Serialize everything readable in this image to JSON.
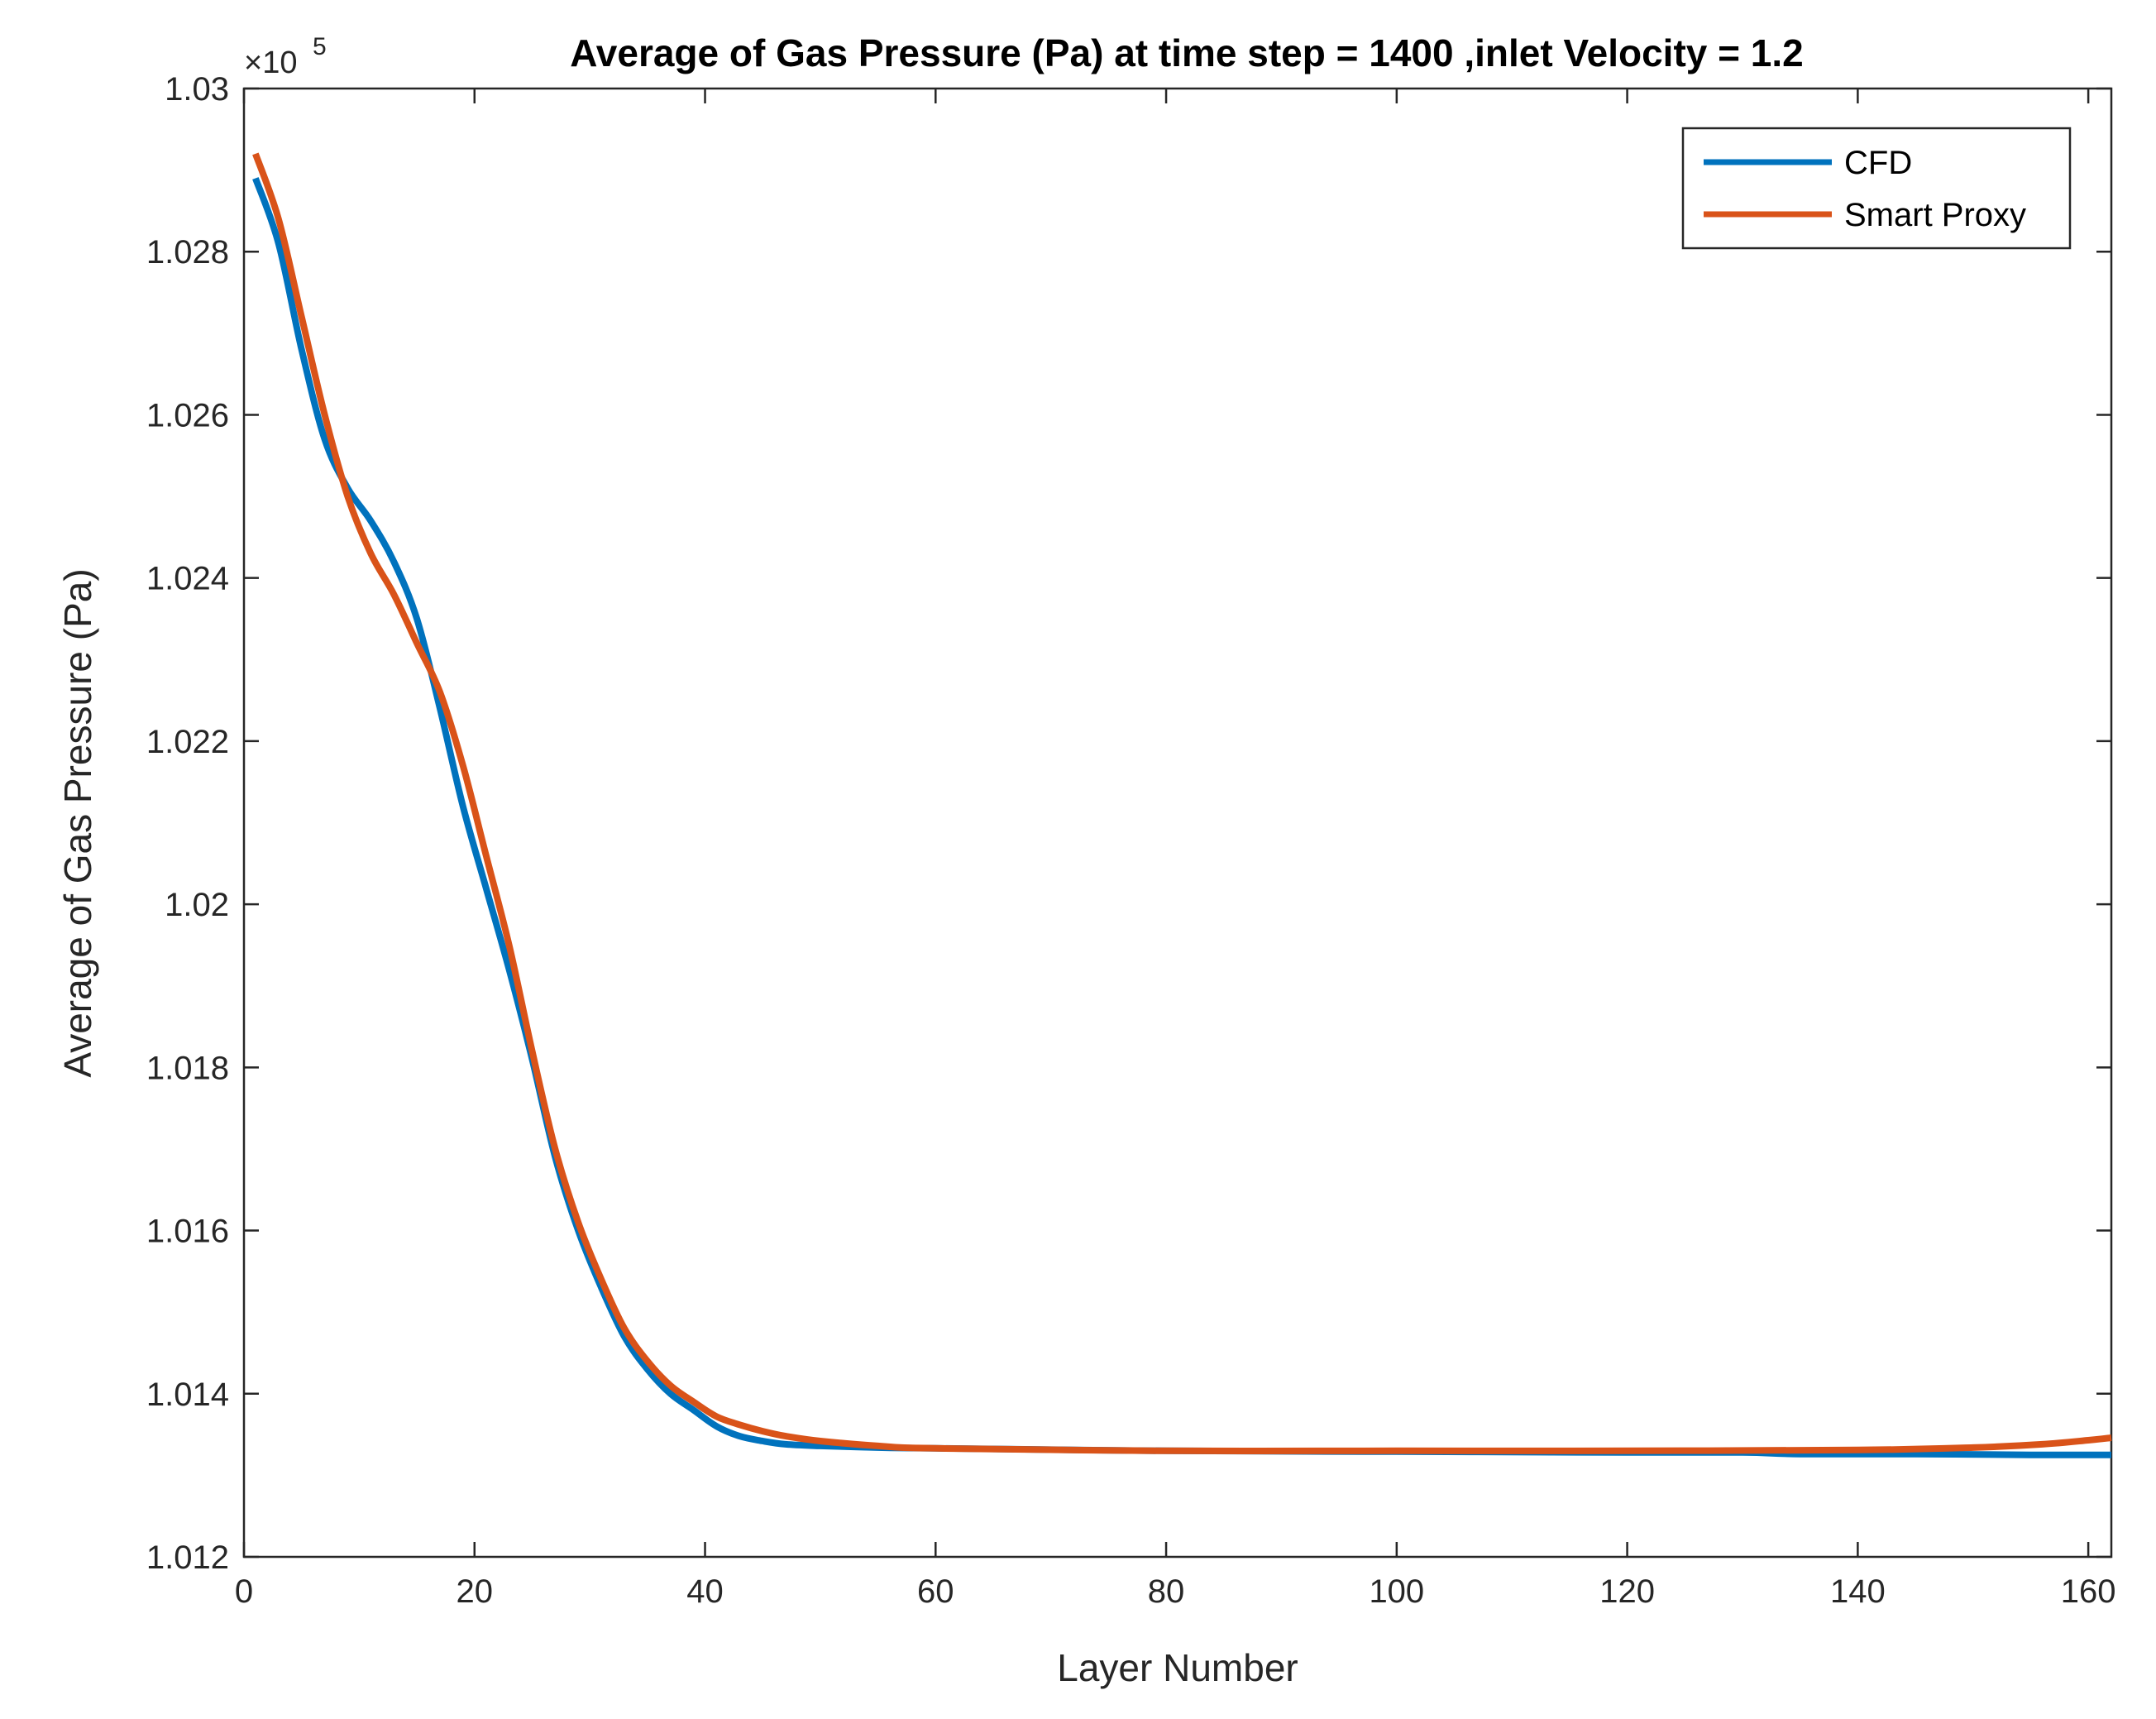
{
  "chart_data": {
    "type": "line",
    "title": "Average of Gas Pressure (Pa) at time step = 1400 ,inlet Velocity = 1.2",
    "xlabel": "Layer Number",
    "ylabel": "Average of Gas Pressure (Pa)",
    "y_multiplier_base": "×10",
    "y_multiplier_exp": "5",
    "xlim": [
      0,
      162
    ],
    "ylim": [
      1.012,
      1.03
    ],
    "xticks": [
      0,
      20,
      40,
      60,
      80,
      100,
      120,
      140,
      160
    ],
    "xtick_labels": [
      "0",
      "20",
      "40",
      "60",
      "80",
      "100",
      "120",
      "140",
      "160"
    ],
    "yticks": [
      1.012,
      1.014,
      1.016,
      1.018,
      1.02,
      1.022,
      1.024,
      1.026,
      1.028,
      1.03
    ],
    "ytick_labels": [
      "1.012",
      "1.014",
      "1.016",
      "1.018",
      "1.02",
      "1.022",
      "1.024",
      "1.026",
      "1.028",
      "1.03"
    ],
    "grid": false,
    "legend_position": "top-right",
    "series": [
      {
        "name": "CFD",
        "color": "#0072BD",
        "points": [
          [
            1,
            1.0289
          ],
          [
            3,
            1.0281
          ],
          [
            5,
            1.0268
          ],
          [
            7,
            1.0257
          ],
          [
            9,
            1.0251
          ],
          [
            11,
            1.0247
          ],
          [
            13,
            1.0242
          ],
          [
            15,
            1.0235
          ],
          [
            17,
            1.0224
          ],
          [
            19,
            1.0212
          ],
          [
            21,
            1.0202
          ],
          [
            23,
            1.0192
          ],
          [
            25,
            1.0181
          ],
          [
            27,
            1.0169
          ],
          [
            29,
            1.016
          ],
          [
            31,
            1.0153
          ],
          [
            33,
            1.0147
          ],
          [
            35,
            1.0143
          ],
          [
            37,
            1.014
          ],
          [
            39,
            1.0138
          ],
          [
            41,
            1.0136
          ],
          [
            43,
            1.01348
          ],
          [
            45,
            1.01342
          ],
          [
            47,
            1.01338
          ],
          [
            50,
            1.01336
          ],
          [
            55,
            1.01334
          ],
          [
            60,
            1.01333
          ],
          [
            80,
            1.0133
          ],
          [
            100,
            1.01329
          ],
          [
            120,
            1.01328
          ],
          [
            130,
            1.01328
          ],
          [
            135,
            1.01326
          ],
          [
            145,
            1.01326
          ],
          [
            155,
            1.01325
          ],
          [
            162,
            1.01325
          ]
        ]
      },
      {
        "name": "Smart Proxy",
        "color": "#D95319",
        "points": [
          [
            1,
            1.0292
          ],
          [
            3,
            1.0284
          ],
          [
            5,
            1.0272
          ],
          [
            7,
            1.026
          ],
          [
            9,
            1.025
          ],
          [
            11,
            1.0243
          ],
          [
            13,
            1.0238
          ],
          [
            15,
            1.0232
          ],
          [
            17,
            1.0226
          ],
          [
            19,
            1.0217
          ],
          [
            21,
            1.0206
          ],
          [
            23,
            1.0195
          ],
          [
            25,
            1.0182
          ],
          [
            27,
            1.017
          ],
          [
            29,
            1.0161
          ],
          [
            31,
            1.0154
          ],
          [
            33,
            1.0148
          ],
          [
            35,
            1.0144
          ],
          [
            37,
            1.0141
          ],
          [
            39,
            1.0139
          ],
          [
            41,
            1.01372
          ],
          [
            43,
            1.01362
          ],
          [
            45,
            1.01354
          ],
          [
            47,
            1.01348
          ],
          [
            50,
            1.01342
          ],
          [
            55,
            1.01336
          ],
          [
            60,
            1.01333
          ],
          [
            80,
            1.0133
          ],
          [
            100,
            1.0133
          ],
          [
            120,
            1.0133
          ],
          [
            140,
            1.01331
          ],
          [
            150,
            1.01334
          ],
          [
            156,
            1.01338
          ],
          [
            160,
            1.01343
          ],
          [
            162,
            1.01346
          ]
        ]
      }
    ]
  }
}
